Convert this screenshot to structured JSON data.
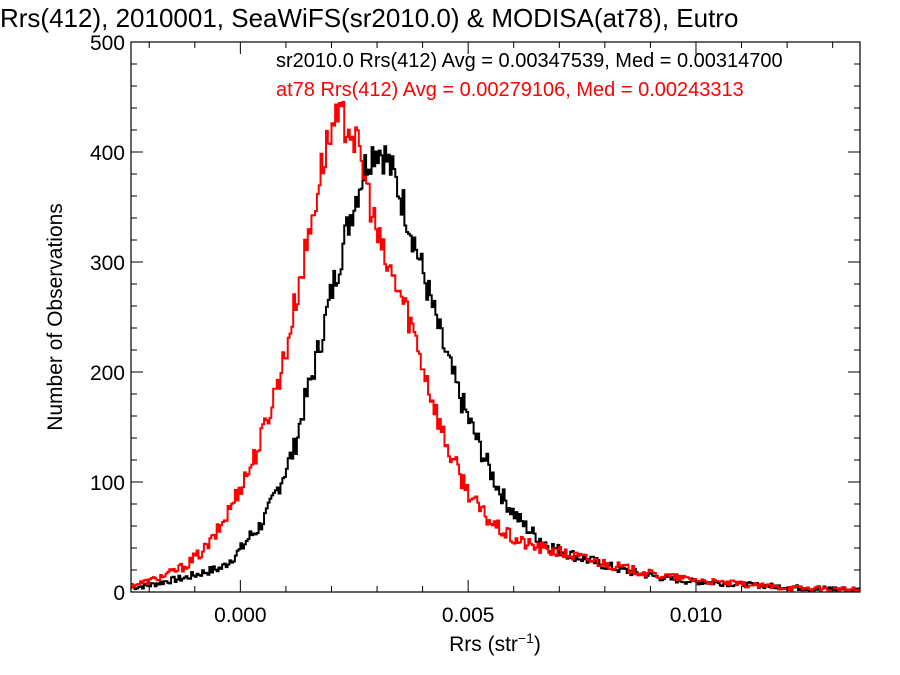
{
  "chart_data": {
    "type": "line",
    "title": "Rrs(412), 2010001, SeaWiFS(sr2010.0) & MODISA(at78), Eutro",
    "xlabel_main": "Rrs (str",
    "xlabel_sup": "−1",
    "xlabel_end": ")",
    "ylabel": "Number of Observations",
    "xlim": [
      -0.0024,
      0.0136
    ],
    "ylim": [
      0,
      500
    ],
    "xticks": [
      {
        "value": 0.0,
        "label": "0.000"
      },
      {
        "value": 0.005,
        "label": "0.005"
      },
      {
        "value": 0.01,
        "label": "0.010"
      }
    ],
    "yticks": [
      {
        "value": 0,
        "label": "0"
      },
      {
        "value": 100,
        "label": "100"
      },
      {
        "value": 200,
        "label": "200"
      },
      {
        "value": 300,
        "label": "300"
      },
      {
        "value": 400,
        "label": "400"
      },
      {
        "value": 500,
        "label": "500"
      }
    ],
    "annotations": [
      {
        "text": "sr2010.0 Rrs(412) Avg = 0.00347539, Med = 0.00314700",
        "color": "#000000"
      },
      {
        "text": "at78 Rrs(412) Avg = 0.00279106, Med = 0.00243313",
        "color": "#ff0000"
      }
    ],
    "series": [
      {
        "color": "#000000",
        "points": [
          [
            -0.0024,
            4
          ],
          [
            -0.002,
            6
          ],
          [
            -0.0016,
            10
          ],
          [
            -0.0012,
            13
          ],
          [
            -0.0008,
            18
          ],
          [
            -0.0004,
            22
          ],
          [
            0.0,
            38
          ],
          [
            0.0002,
            50
          ],
          [
            0.0004,
            58
          ],
          [
            0.0006,
            72
          ],
          [
            0.0008,
            92
          ],
          [
            0.001,
            112
          ],
          [
            0.0012,
            132
          ],
          [
            0.0014,
            170
          ],
          [
            0.0016,
            200
          ],
          [
            0.0018,
            235
          ],
          [
            0.002,
            272
          ],
          [
            0.0022,
            305
          ],
          [
            0.0024,
            340
          ],
          [
            0.0026,
            368
          ],
          [
            0.0028,
            395
          ],
          [
            0.003,
            405
          ],
          [
            0.0032,
            395
          ],
          [
            0.0034,
            375
          ],
          [
            0.0036,
            350
          ],
          [
            0.0038,
            322
          ],
          [
            0.004,
            292
          ],
          [
            0.0042,
            262
          ],
          [
            0.0044,
            232
          ],
          [
            0.0046,
            205
          ],
          [
            0.0048,
            180
          ],
          [
            0.005,
            158
          ],
          [
            0.0052,
            138
          ],
          [
            0.0054,
            118
          ],
          [
            0.0056,
            100
          ],
          [
            0.0058,
            84
          ],
          [
            0.006,
            72
          ],
          [
            0.0062,
            62
          ],
          [
            0.0064,
            54
          ],
          [
            0.0066,
            48
          ],
          [
            0.0068,
            42
          ],
          [
            0.007,
            38
          ],
          [
            0.0074,
            32
          ],
          [
            0.0078,
            27
          ],
          [
            0.0082,
            22
          ],
          [
            0.0086,
            18
          ],
          [
            0.009,
            15
          ],
          [
            0.0094,
            12
          ],
          [
            0.0098,
            10
          ],
          [
            0.0102,
            9
          ],
          [
            0.0106,
            8
          ],
          [
            0.011,
            7
          ],
          [
            0.0114,
            6
          ],
          [
            0.0118,
            5
          ],
          [
            0.0122,
            4
          ],
          [
            0.0126,
            3
          ],
          [
            0.013,
            3
          ],
          [
            0.0134,
            2
          ],
          [
            0.0136,
            2
          ]
        ]
      },
      {
        "color": "#ff0000",
        "points": [
          [
            -0.0024,
            6
          ],
          [
            -0.002,
            10
          ],
          [
            -0.0016,
            16
          ],
          [
            -0.0012,
            24
          ],
          [
            -0.0008,
            38
          ],
          [
            -0.0006,
            48
          ],
          [
            -0.0004,
            62
          ],
          [
            -0.0002,
            78
          ],
          [
            0.0,
            96
          ],
          [
            0.0002,
            112
          ],
          [
            0.0004,
            132
          ],
          [
            0.0006,
            158
          ],
          [
            0.0008,
            188
          ],
          [
            0.001,
            218
          ],
          [
            0.0012,
            262
          ],
          [
            0.0014,
            302
          ],
          [
            0.0016,
            345
          ],
          [
            0.0018,
            390
          ],
          [
            0.002,
            420
          ],
          [
            0.0022,
            430
          ],
          [
            0.0024,
            425
          ],
          [
            0.0026,
            400
          ],
          [
            0.0028,
            365
          ],
          [
            0.003,
            325
          ],
          [
            0.0032,
            298
          ],
          [
            0.0034,
            282
          ],
          [
            0.0036,
            262
          ],
          [
            0.0038,
            238
          ],
          [
            0.004,
            208
          ],
          [
            0.0042,
            178
          ],
          [
            0.0044,
            150
          ],
          [
            0.0046,
            126
          ],
          [
            0.0048,
            108
          ],
          [
            0.005,
            92
          ],
          [
            0.0052,
            78
          ],
          [
            0.0054,
            68
          ],
          [
            0.0056,
            60
          ],
          [
            0.0058,
            54
          ],
          [
            0.006,
            48
          ],
          [
            0.0064,
            42
          ],
          [
            0.0068,
            38
          ],
          [
            0.0072,
            34
          ],
          [
            0.0076,
            30
          ],
          [
            0.008,
            26
          ],
          [
            0.0084,
            22
          ],
          [
            0.0088,
            18
          ],
          [
            0.0092,
            15
          ],
          [
            0.0096,
            13
          ],
          [
            0.01,
            11
          ],
          [
            0.0104,
            9
          ],
          [
            0.0108,
            8
          ],
          [
            0.0112,
            6
          ],
          [
            0.0116,
            5
          ],
          [
            0.012,
            4
          ],
          [
            0.0126,
            3
          ],
          [
            0.0132,
            2
          ],
          [
            0.0136,
            2
          ]
        ]
      }
    ]
  }
}
